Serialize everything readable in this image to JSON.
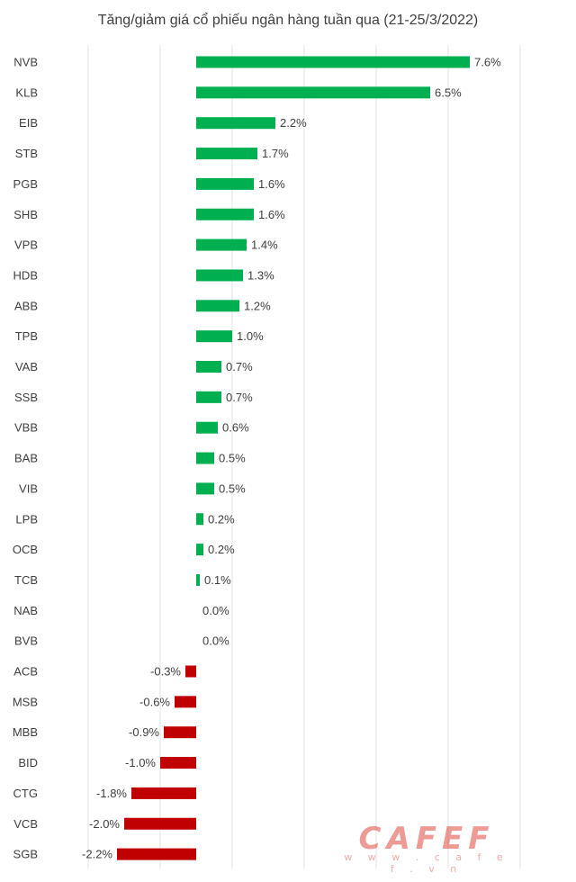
{
  "chart_data": {
    "type": "bar",
    "orientation": "horizontal",
    "title": "Tăng/giảm giá cổ phiếu ngân hàng tuần qua (21-25/3/2022)",
    "categories": [
      "NVB",
      "KLB",
      "EIB",
      "STB",
      "PGB",
      "SHB",
      "VPB",
      "HDB",
      "ABB",
      "TPB",
      "VAB",
      "SSB",
      "VBB",
      "BAB",
      "VIB",
      "LPB",
      "OCB",
      "TCB",
      "NAB",
      "BVB",
      "ACB",
      "MSB",
      "MBB",
      "BID",
      "CTG",
      "VCB",
      "SGB"
    ],
    "values": [
      7.6,
      6.5,
      2.2,
      1.7,
      1.6,
      1.6,
      1.4,
      1.3,
      1.2,
      1.0,
      0.7,
      0.7,
      0.6,
      0.5,
      0.5,
      0.2,
      0.2,
      0.1,
      0.0,
      0.0,
      -0.3,
      -0.6,
      -0.9,
      -1.0,
      -1.8,
      -2.0,
      -2.2
    ],
    "data_labels": [
      "7.6%",
      "6.5%",
      "2.2%",
      "1.7%",
      "1.6%",
      "1.6%",
      "1.4%",
      "1.3%",
      "1.2%",
      "1.0%",
      "0.7%",
      "0.7%",
      "0.6%",
      "0.5%",
      "0.5%",
      "0.2%",
      "0.2%",
      "0.1%",
      "0.0%",
      "0.0%",
      "-0.3%",
      "-0.6%",
      "-0.9%",
      "-1.0%",
      "-1.8%",
      "-2.0%",
      "-2.2%"
    ],
    "xlim": [
      -3,
      9
    ],
    "grid": true,
    "positive_color": "#00b050",
    "negative_color": "#c00000"
  },
  "watermark": {
    "text": "CAFEF",
    "sub": "w w w . c a f e f . v n"
  }
}
